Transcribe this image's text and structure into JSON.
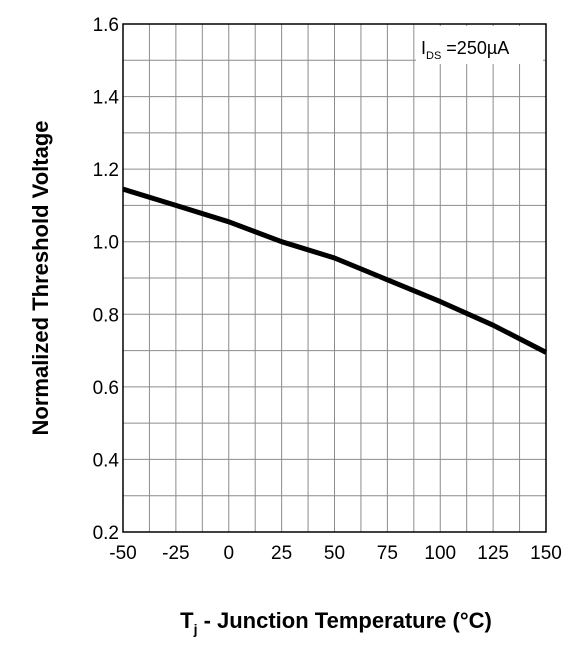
{
  "chart_data": {
    "type": "line",
    "title": "",
    "xlabel": "T",
    "xlabel_sub": "j",
    "xlabel_rest": " - Junction Temperature (°C)",
    "ylabel": "Normalized Threshold Voltage",
    "xlim": [
      -50,
      150
    ],
    "ylim": [
      0.2,
      1.6
    ],
    "x_ticks": [
      -50,
      -25,
      0,
      25,
      50,
      75,
      100,
      125,
      150
    ],
    "x_tick_labels": [
      "-50",
      "-25",
      "0",
      "25",
      "50",
      "75",
      "100",
      "125",
      "150"
    ],
    "y_ticks": [
      0.2,
      0.4,
      0.6,
      0.8,
      1.0,
      1.2,
      1.4,
      1.6
    ],
    "y_tick_labels": [
      "0.2",
      "0.4",
      "0.6",
      "0.8",
      "1.0",
      "1.2",
      "1.4",
      "1.6"
    ],
    "grid": true,
    "grid_x_minor_step": 12.5,
    "grid_y_minor_step": 0.1,
    "annotation": {
      "main": "I",
      "sub": "DS",
      "rest": " =250µA"
    },
    "legend_position": "top-right",
    "series": [
      {
        "x": [
          -50,
          -25,
          0,
          25,
          50,
          75,
          100,
          125,
          150
        ],
        "y": [
          1.145,
          1.1,
          1.055,
          1.0,
          0.955,
          0.895,
          0.835,
          0.77,
          0.695
        ],
        "color": "#000000"
      }
    ]
  }
}
